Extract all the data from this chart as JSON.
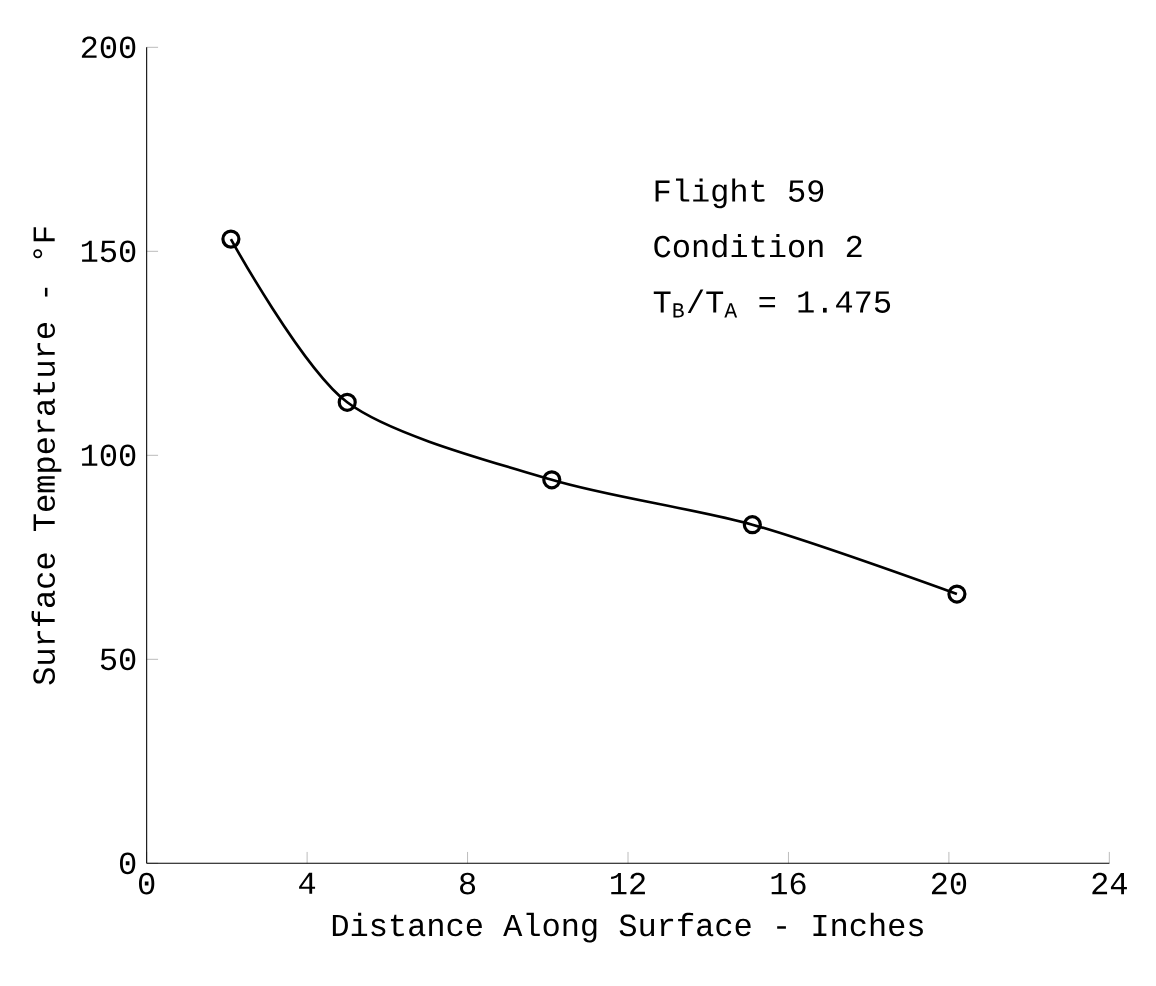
{
  "chart_data": {
    "type": "line",
    "xlabel": "Distance Along Surface - Inches",
    "ylabel": "Surface Temperature - °F",
    "annotations": [
      "Flight 59",
      "Condition 2",
      "T$_{B}$/T$_{A}$ = 1.475"
    ],
    "x": [
      2.1,
      5,
      10.1,
      15.1,
      20.2
    ],
    "series": [
      {
        "color": "#000000",
        "values": [
          153,
          113,
          94,
          83,
          66
        ]
      }
    ],
    "xlim": [
      0,
      24
    ],
    "ylim": [
      0,
      200
    ],
    "xticks": [
      0,
      4,
      8,
      12,
      16,
      20,
      24
    ],
    "yticks": [
      0,
      50,
      100,
      150,
      200
    ],
    "marker": "circle",
    "line_style": "solid"
  }
}
